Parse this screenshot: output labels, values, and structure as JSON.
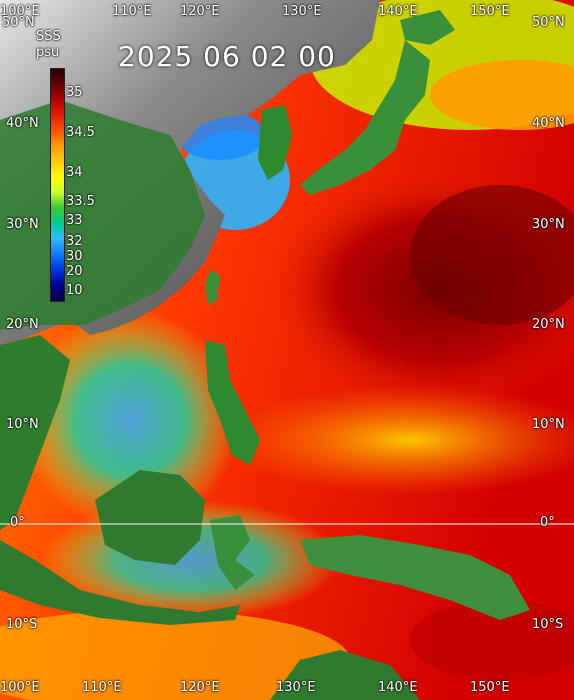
{
  "map": {
    "timestamp": "2025 06 02 00",
    "legend": {
      "title": "SSS",
      "unit": "psu",
      "ticks": [
        "35",
        "34.5",
        "34",
        "33.5",
        "33",
        "32",
        "30",
        "20",
        "10"
      ],
      "colors": [
        "#2a0000",
        "#6a0000",
        "#b00000",
        "#e81e00",
        "#ff5500",
        "#ff9900",
        "#ffcc00",
        "#ffff00",
        "#ccff33",
        "#33cc33",
        "#00cc99",
        "#33bbff",
        "#1177ff",
        "#0033dd",
        "#000099",
        "#000044"
      ]
    },
    "lon_labels_top": [
      "100°E",
      "110°E",
      "120°E",
      "130°E",
      "140°E",
      "150°E"
    ],
    "lon_labels_bottom": [
      "100°E",
      "110°E",
      "120°E",
      "130°E",
      "140°E",
      "150°E"
    ],
    "lat_labels_left": [
      "50°N",
      "40°N",
      "30°N",
      "20°N",
      "10°N",
      "0°",
      "10°S"
    ],
    "lat_labels_right": [
      "50°N",
      "40°N",
      "30°N",
      "20°N",
      "10°N",
      "0°",
      "10°S"
    ],
    "colors": {
      "equator": "#ffffff",
      "land_dark": "#4d4d4d",
      "land_green": "#2d7a2d",
      "ocean_warm": "#e53000",
      "ocean_deep": "#8c0000"
    }
  }
}
